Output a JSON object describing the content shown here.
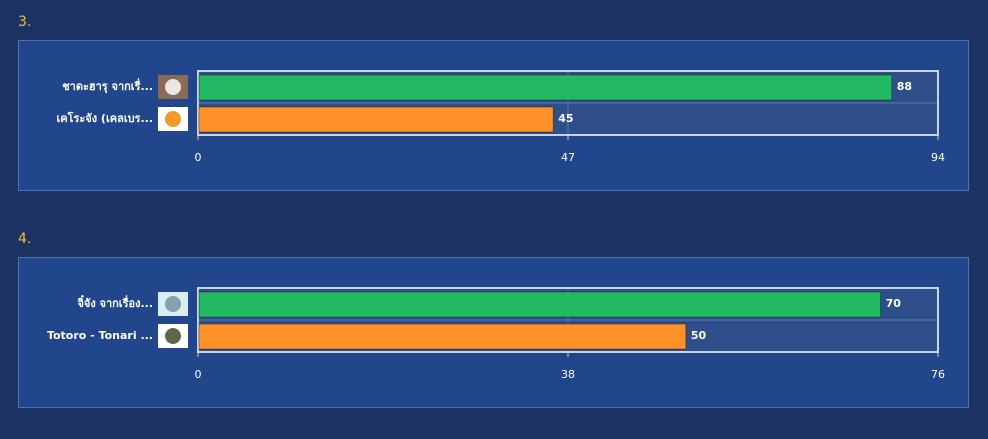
{
  "chart_data": [
    {
      "type": "bar",
      "orientation": "horizontal",
      "title": "3.",
      "categories": [
        "ชาดะฮารุ จากเรื่...",
        "เคโระจัง (เคลเบร..."
      ],
      "values": [
        88,
        45
      ],
      "colors": [
        "#23b863",
        "#ff9128"
      ],
      "xlim": [
        0,
        94
      ],
      "xticks": [
        0,
        47,
        94
      ],
      "grid": true
    },
    {
      "type": "bar",
      "orientation": "horizontal",
      "title": "4.",
      "categories": [
        "จิ๋จัง จากเรื่อง...",
        "Totoro - Tonari ..."
      ],
      "values": [
        70,
        50
      ],
      "colors": [
        "#23b863",
        "#ff9128"
      ],
      "xlim": [
        0,
        76
      ],
      "xticks": [
        0,
        38,
        76
      ],
      "grid": true
    }
  ]
}
